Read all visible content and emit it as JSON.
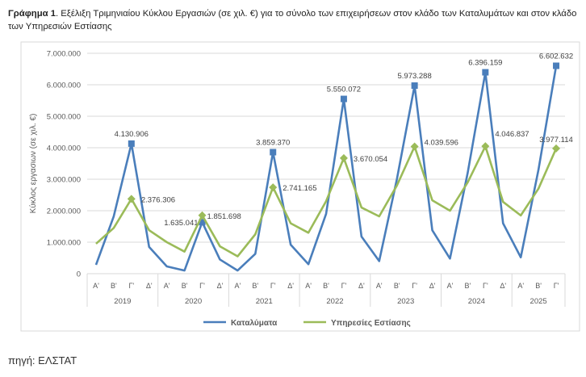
{
  "title": {
    "bold": "Γράφημα 1",
    "text": ". Εξέλιξη Τριμηνιαίου Κύκλου Εργασιών (σε χιλ. €) για το σύνολο των επιχειρήσεων στον κλάδο των Καταλυμάτων και στον κλάδο των Υπηρεσιών Εστίασης"
  },
  "source": "πηγή: ΕΛΣΤΑΤ",
  "chart_data": {
    "type": "line",
    "ylabel": "Κύκλος εργασιων (σε χιλ. €)",
    "ylim": [
      0,
      7000000
    ],
    "yticks": [
      0,
      1000000,
      2000000,
      3000000,
      4000000,
      5000000,
      6000000,
      7000000
    ],
    "ytick_labels": [
      "0",
      "1.000.000",
      "2.000.000",
      "3.000.000",
      "4.000.000",
      "5.000.000",
      "6.000.000",
      "7.000.000"
    ],
    "grid": true,
    "legend": "bottom",
    "years": [
      {
        "label": "2019",
        "quarters": [
          "Α'",
          "Β'",
          "Γ'",
          "Δ'"
        ]
      },
      {
        "label": "2020",
        "quarters": [
          "Α'",
          "Β'",
          "Γ'",
          "Δ'"
        ]
      },
      {
        "label": "2021",
        "quarters": [
          "Α'",
          "Β'",
          "Γ'",
          "Δ'"
        ]
      },
      {
        "label": "2022",
        "quarters": [
          "Α'",
          "Β'",
          "Γ'",
          "Δ'"
        ]
      },
      {
        "label": "2023",
        "quarters": [
          "Α'",
          "Β'",
          "Γ'",
          "Δ'"
        ]
      },
      {
        "label": "2024",
        "quarters": [
          "Α'",
          "Β'",
          "Γ'",
          "Δ'"
        ]
      },
      {
        "label": "2025",
        "quarters": [
          "Α'",
          "Β'",
          "Γ'"
        ]
      }
    ],
    "series": [
      {
        "name": "Καταλύματα",
        "color": "#4a7ebb",
        "marker": "square",
        "values": [
          280000,
          1820000,
          4130906,
          850000,
          230000,
          100000,
          1635041,
          450000,
          100000,
          630000,
          3859370,
          920000,
          300000,
          1900000,
          5550072,
          1180000,
          400000,
          3000000,
          5973288,
          1380000,
          480000,
          3200000,
          6396159,
          1600000,
          520000,
          3300000,
          6602632
        ],
        "labels": {
          "2": "4.130.906",
          "6": "1.635.041",
          "10": "3.859.370",
          "14": "5.550.072",
          "18": "5.973.288",
          "22": "6.396.159",
          "26": "6.602.632"
        }
      },
      {
        "name": "Υπηρεσίες Εστίασης",
        "color": "#9bbb59",
        "marker": "diamond",
        "values": [
          950000,
          1450000,
          2376306,
          1380000,
          1000000,
          700000,
          1851698,
          870000,
          550000,
          1250000,
          2741165,
          1600000,
          1300000,
          2300000,
          3670054,
          2100000,
          1820000,
          2800000,
          4039596,
          2330000,
          2000000,
          2900000,
          4046837,
          2280000,
          1850000,
          2700000,
          3977114
        ],
        "labels": {
          "2": "2.376.306",
          "6": "1.851.698",
          "10": "2.741.165",
          "14": "3.670.054",
          "18": "4.039.596",
          "22": "4.046.837",
          "26": "3.977.114"
        }
      }
    ]
  }
}
